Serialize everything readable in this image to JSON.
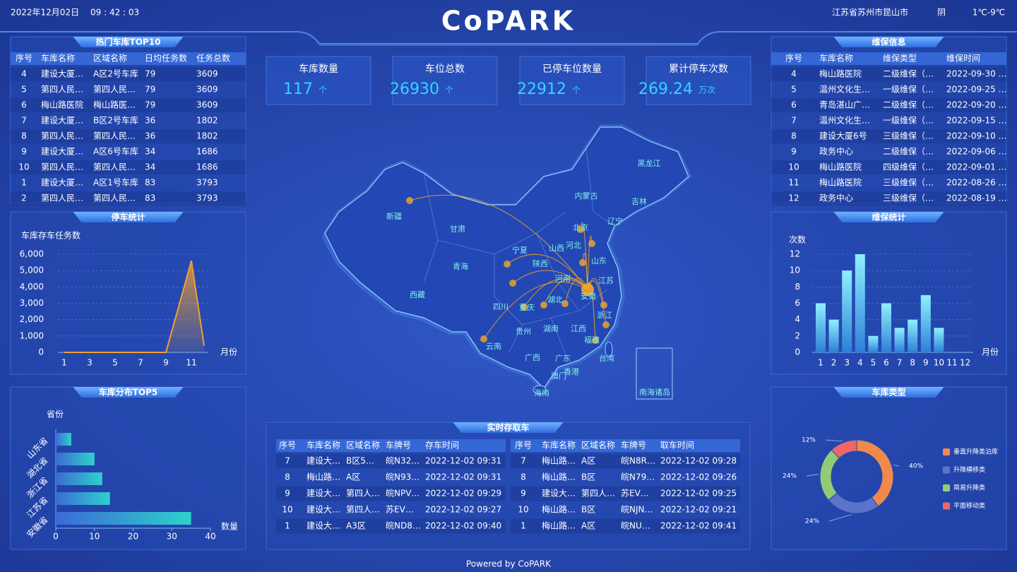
{
  "header": {
    "date": "2022年12月02日",
    "time": "09 : 42 : 03",
    "title": "CoPARK",
    "location": "江苏省苏州市昆山市",
    "weather": "阴",
    "temperature": "1℃-9℃"
  },
  "hot_garages": {
    "title": "热门车库TOP10",
    "columns": [
      "序号",
      "车库名称",
      "区域名称",
      "日均任务数",
      "任务总数"
    ],
    "rows": [
      [
        "4",
        "建设大厦…",
        "A区2号车库",
        "79",
        "3609"
      ],
      [
        "5",
        "第四人民…",
        "第四人民…",
        "79",
        "3609"
      ],
      [
        "6",
        "梅山路医院",
        "梅山路医…",
        "79",
        "3609"
      ],
      [
        "7",
        "建设大厦…",
        "B区2号车库",
        "36",
        "1802"
      ],
      [
        "8",
        "第四人民…",
        "第四人民…",
        "36",
        "1802"
      ],
      [
        "9",
        "建设大厦…",
        "A区6号车库",
        "34",
        "1686"
      ],
      [
        "10",
        "第四人民…",
        "第四人民…",
        "34",
        "1686"
      ],
      [
        "1",
        "建设大厦…",
        "A区1号车库",
        "83",
        "3793"
      ],
      [
        "2",
        "第四人民…",
        "第四人民…",
        "83",
        "3793"
      ]
    ]
  },
  "stats": [
    {
      "label": "车库数量",
      "value": 117,
      "unit": "个"
    },
    {
      "label": "车位总数",
      "value": 26930,
      "unit": "个"
    },
    {
      "label": "已停车位数量",
      "value": 22912,
      "unit": "个"
    },
    {
      "label": "累计停车次数",
      "value": 269.24,
      "unit": "万次"
    }
  ],
  "chart_data": [
    {
      "type": "area",
      "title": "停车统计",
      "y_label": "车库存车任务数",
      "x_label": "月份",
      "color": "#f0a030",
      "categories": [
        1,
        null,
        3,
        null,
        5,
        null,
        7,
        null,
        9,
        null,
        11,
        null
      ],
      "values": [
        0,
        0,
        0,
        0,
        0,
        0,
        0,
        0,
        0,
        2800,
        5600,
        400
      ],
      "ylim": [
        0,
        6000
      ],
      "yticks": [
        0,
        {
          "value": 1000,
          "label": "1,000"
        },
        {
          "value": 2000,
          "label": "2,000"
        },
        {
          "value": 3000,
          "label": "3,000"
        },
        {
          "value": 4000,
          "label": "4,000"
        },
        {
          "value": 5000,
          "label": "5,000"
        },
        {
          "value": 6000,
          "label": "6,000"
        }
      ],
      "grid": true
    },
    {
      "type": "hbar",
      "title": "车库分布TOP5",
      "y_label": "省份",
      "x_label": "数量",
      "color": "#2ec4c8",
      "categories": [
        "安徽省",
        "江苏省",
        "浙江省",
        "湖北省",
        "山东省"
      ],
      "values": [
        35,
        14,
        12,
        10,
        4
      ],
      "xlim": [
        0,
        40
      ],
      "xticks": [
        0,
        10,
        20,
        30,
        40
      ]
    },
    {
      "type": "bar",
      "title": "维保统计",
      "y_label": "次数",
      "x_label": "月份",
      "color": "#7fe8f5",
      "categories": [
        1,
        2,
        3,
        4,
        5,
        6,
        7,
        8,
        9,
        10,
        11,
        12
      ],
      "values": [
        6,
        4,
        10,
        12,
        2,
        6,
        3,
        4,
        7,
        3,
        0,
        0
      ],
      "ylim": [
        0,
        12
      ],
      "yticks": [
        0,
        2,
        4,
        6,
        8,
        10,
        12
      ],
      "grid": true
    },
    {
      "type": "donut",
      "title": "车库类型",
      "categories": [
        "垂直升降类泊库",
        "升降横移类",
        "简易升降类",
        "平面移动类"
      ],
      "values": [
        40,
        24,
        24,
        12
      ],
      "value_labels": [
        "40%",
        "24%",
        "24%",
        "12%"
      ],
      "colors": [
        "#f08a4b",
        "#5b73c8",
        "#91cc75",
        "#ee6666"
      ]
    }
  ],
  "maintenance_info": {
    "title": "维保信息",
    "columns": [
      "序号",
      "车库名称",
      "维保类型",
      "维保时间"
    ],
    "rows": [
      [
        "4",
        "梅山路医院",
        "二级维保（…",
        "2022-09-30 …"
      ],
      [
        "5",
        "温州文化生…",
        "一级维保（…",
        "2022-09-25 …"
      ],
      [
        "6",
        "青岛湛山广…",
        "二级维保（…",
        "2022-09-20 …"
      ],
      [
        "7",
        "温州文化生…",
        "一级维保（…",
        "2022-09-15 …"
      ],
      [
        "8",
        "建设大厦6号",
        "三级维保（…",
        "2022-09-10 …"
      ],
      [
        "9",
        "政务中心",
        "二级维保（…",
        "2022-09-06 …"
      ],
      [
        "10",
        "梅山路医院",
        "四级维保（…",
        "2022-09-01 …"
      ],
      [
        "11",
        "梅山路医院",
        "三级维保（…",
        "2022-08-26 …"
      ],
      [
        "12",
        "政务中心",
        "三级维保（…",
        "2022-08-19 …"
      ]
    ]
  },
  "realtime": {
    "title": "实时存取车",
    "store": {
      "columns": [
        "序号",
        "车库名称",
        "区域名称",
        "车牌号",
        "存车时间"
      ],
      "rows": [
        [
          "7",
          "建设大…",
          "B区5…",
          "皖N32…",
          "2022-12-02 09:31"
        ],
        [
          "8",
          "梅山路…",
          "A区",
          "皖N93…",
          "2022-12-02 09:31"
        ],
        [
          "9",
          "建设大…",
          "第四人…",
          "皖NPV…",
          "2022-12-02 09:29"
        ],
        [
          "10",
          "建设大…",
          "第四人…",
          "苏EV…",
          "2022-12-02 09:27"
        ],
        [
          "1",
          "建设大…",
          "A3区",
          "皖ND8…",
          "2022-12-02 09:40"
        ]
      ]
    },
    "retrieve": {
      "columns": [
        "序号",
        "车库名称",
        "区域名称",
        "车牌号",
        "取车时间"
      ],
      "rows": [
        [
          "7",
          "梅山路…",
          "A区",
          "皖N8R…",
          "2022-12-02 09:28"
        ],
        [
          "8",
          "梅山路…",
          "B区",
          "皖N79…",
          "2022-12-02 09:26"
        ],
        [
          "9",
          "建设大…",
          "第四人…",
          "苏EV…",
          "2022-12-02 09:25"
        ],
        [
          "10",
          "梅山路…",
          "B区",
          "皖NJN…",
          "2022-12-02 09:21"
        ],
        [
          "1",
          "梅山路…",
          "A区",
          "皖NU…",
          "2022-12-02 09:41"
        ]
      ]
    }
  },
  "map": {
    "labels": [
      "黑龙江",
      "吉林",
      "辽宁",
      "内蒙古",
      "新疆",
      "甘肃",
      "青海",
      "西藏",
      "宁夏",
      "陕西",
      "山西",
      "河北",
      "北京",
      "山东",
      "河南",
      "江苏",
      "安徽",
      "湖北",
      "四川",
      "重庆",
      "贵州",
      "云南",
      "湖南",
      "江西",
      "浙江",
      "福建",
      "广西",
      "广东",
      "台湾",
      "海南",
      "香港",
      "澳门",
      "南海诸岛"
    ]
  },
  "footer": "Powered by CoPARK"
}
